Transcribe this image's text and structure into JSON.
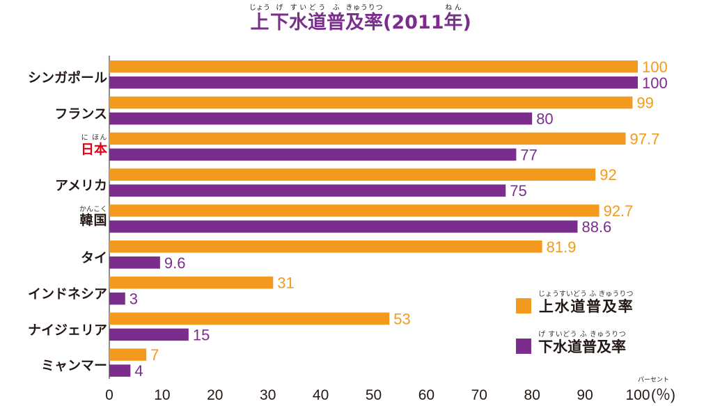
{
  "chart_data": {
    "type": "bar",
    "orientation": "horizontal",
    "title": "上下水道普及率(2011年)",
    "title_ruby": [
      [
        "上",
        "じょう"
      ],
      [
        "下",
        "げ"
      ],
      [
        "水道",
        "すいどう"
      ],
      [
        "普",
        "ふ"
      ],
      [
        "及率",
        "きゅうりつ"
      ],
      [
        "(2011",
        ""
      ],
      [
        "年",
        "ねん"
      ],
      [
        ")",
        ""
      ]
    ],
    "categories": [
      "シンガポール",
      "フランス",
      "日本",
      "アメリカ",
      "韓国",
      "タイ",
      "インドネシア",
      "ナイジェリア",
      "ミャンマー"
    ],
    "category_ruby": {
      "日本": "に ほん",
      "韓国": "かんこく"
    },
    "highlight_category": "日本",
    "highlight_color": "#E60012",
    "series": [
      {
        "name": "上水道普及率",
        "ruby": "じょうすいどう ふ きゅうりつ",
        "color": "#F39A1E",
        "values": [
          100,
          99,
          97.7,
          92,
          92.7,
          81.9,
          31,
          53,
          7
        ],
        "labels": [
          "100",
          "99",
          "97.7",
          "92",
          "92.7",
          "81.9",
          "31",
          "53",
          "7"
        ]
      },
      {
        "name": "下水道普及率",
        "ruby": "げ すいどう ふ きゅうりつ",
        "color": "#7B2D8E",
        "values": [
          100,
          80,
          77,
          75,
          88.6,
          9.6,
          3,
          15,
          4
        ],
        "labels": [
          "100",
          "80",
          "77",
          "75",
          "88.6",
          "9.6",
          "3",
          "15",
          "4"
        ]
      }
    ],
    "xlim": [
      0,
      100
    ],
    "xticks": [
      "0",
      "10",
      "20",
      "30",
      "40",
      "50",
      "60",
      "70",
      "80",
      "90",
      "100"
    ],
    "xunit": "(％)",
    "xunit_ruby": "パーセント",
    "legend": "bottom-right",
    "grid": false
  }
}
